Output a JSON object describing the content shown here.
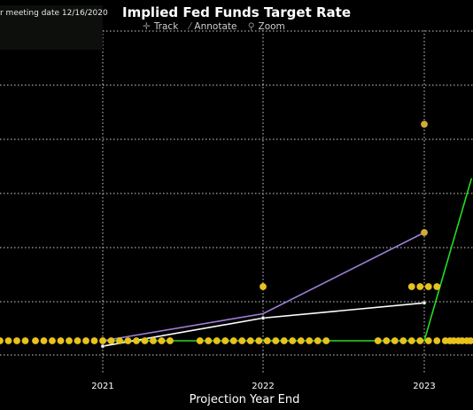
{
  "title": "Implied Fed Funds Target Rate",
  "meeting_label": "r meeting date 12/16/2020",
  "toolbar": {
    "track": {
      "label": "Track",
      "icon": "crosshair-icon"
    },
    "annotate": {
      "label": "Annotate",
      "icon": "pencil-icon"
    },
    "zoom": {
      "label": "Zoom",
      "icon": "magnifier-icon"
    }
  },
  "colors": {
    "background": "#000000",
    "grid": "#d0d0d0",
    "dots": "#e8c21d",
    "green_line": "#22dd22",
    "purple_line": "#9d7fd8",
    "white_line": "#ffffff"
  },
  "chart_data": {
    "type": "scatter",
    "title": "Implied Fed Funds Target Rate",
    "xlabel": "Projection Year End",
    "ylabel": "",
    "x_ticks": [
      "2021",
      "2022",
      "2023"
    ],
    "grid": true,
    "dot_plot": [
      {
        "x": "2021",
        "y": 0.125,
        "count": 17
      },
      {
        "x": "2022",
        "y": 0.125,
        "count": 16
      },
      {
        "x": "2022",
        "y": 0.375,
        "count": 1
      },
      {
        "x": "2023",
        "y": 0.125,
        "count": 12
      },
      {
        "x": "2023",
        "y": 0.375,
        "count": 4
      },
      {
        "x": "2023",
        "y": 0.625,
        "count": 1
      },
      {
        "x": "2023",
        "y": 1.125,
        "count": 1
      }
    ],
    "series": [
      {
        "color": "#22dd22",
        "points": [
          {
            "x": "2021",
            "y": 0.125
          },
          {
            "x": "2022",
            "y": 0.125
          },
          {
            "x": "2023",
            "y": 0.125
          },
          {
            "x": "2023.3",
            "y": 0.875
          }
        ]
      },
      {
        "color": "#9d7fd8",
        "points": [
          {
            "x": "2021",
            "y": 0.125
          },
          {
            "x": "2022",
            "y": 0.25
          },
          {
            "x": "2023",
            "y": 0.625
          }
        ]
      },
      {
        "color": "#ffffff",
        "points": [
          {
            "x": "2021",
            "y": 0.1
          },
          {
            "x": "2022",
            "y": 0.23
          },
          {
            "x": "2023",
            "y": 0.3
          }
        ]
      }
    ]
  }
}
